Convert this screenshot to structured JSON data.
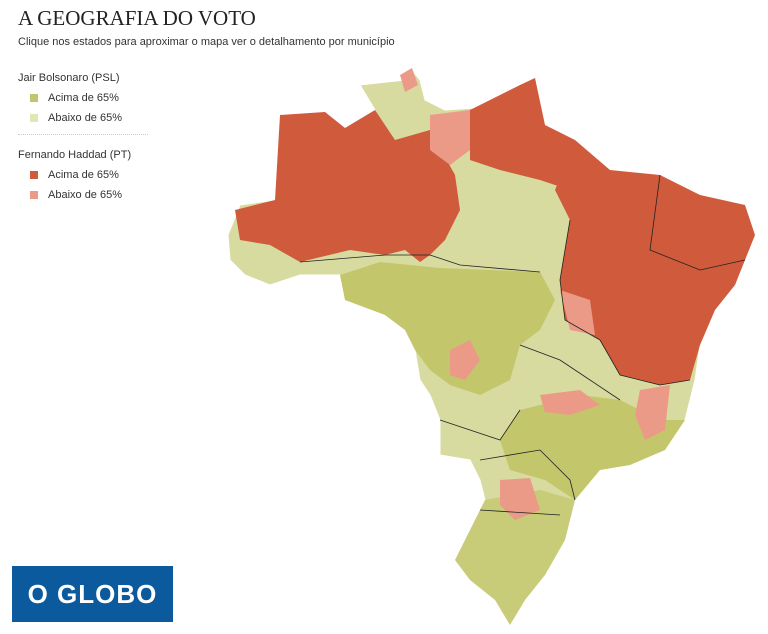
{
  "header": {
    "title": "A GEOGRAFIA DO VOTO",
    "subtitle": "Clique nos estados para aproximar o mapa ver o detalhamento por município"
  },
  "legend": [
    {
      "name": "Jair Bolsonaro (PSL)",
      "items": [
        {
          "label": "Acima de 65%",
          "color": "#c3c66a"
        },
        {
          "label": "Abaixo de 65%",
          "color": "#e2e5b4"
        }
      ]
    },
    {
      "name": "Fernando Haddad (PT)",
      "items": [
        {
          "label": "Acima de 65%",
          "color": "#d05a3c"
        },
        {
          "label": "Abaixo de 65%",
          "color": "#eb9a88"
        }
      ]
    }
  ],
  "logo": "O GLOBO"
}
